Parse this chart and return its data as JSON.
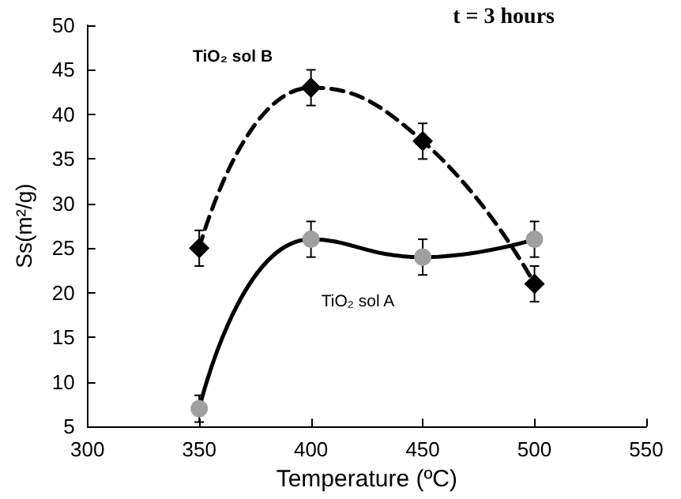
{
  "chart_data": {
    "type": "line",
    "xlabel": "Temperature (ºC)",
    "ylabel": "Ss(m²/g)",
    "annotations": [
      "t = 3 hours"
    ],
    "x": [
      350,
      400,
      450,
      500
    ],
    "series": [
      {
        "name": "TiO₂ sol B",
        "color": "#000000",
        "values": [
          25,
          43,
          37,
          21
        ],
        "errors": [
          2,
          2,
          2,
          2
        ],
        "marker": "diamond",
        "line_style": "dashed"
      },
      {
        "name": "TiO₂ sol A",
        "color": "#a0a0a0",
        "values": [
          7,
          26,
          24,
          26
        ],
        "errors": [
          1.5,
          2,
          2,
          2
        ],
        "marker": "circle",
        "line_style": "solid"
      }
    ],
    "xlim": [
      300,
      550
    ],
    "xticks": [
      300,
      350,
      400,
      450,
      500,
      550
    ],
    "ylim": [
      5,
      50
    ],
    "yticks": [
      5,
      10,
      15,
      20,
      25,
      30,
      35,
      40,
      45,
      50
    ],
    "grid": false,
    "legend": false
  }
}
